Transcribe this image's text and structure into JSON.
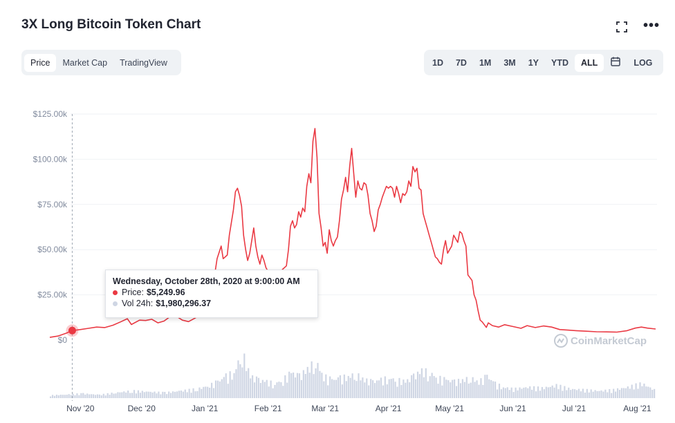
{
  "title": "3X Long Bitcoin Token Chart",
  "icons": {
    "fullscreen": "fullscreen-icon",
    "more": "more-icon",
    "calendar": "calendar-icon"
  },
  "tabs": [
    {
      "label": "Price",
      "active": true
    },
    {
      "label": "Market Cap",
      "active": false
    },
    {
      "label": "TradingView",
      "active": false
    }
  ],
  "ranges": [
    {
      "label": "1D",
      "active": false
    },
    {
      "label": "7D",
      "active": false
    },
    {
      "label": "1M",
      "active": false
    },
    {
      "label": "3M",
      "active": false
    },
    {
      "label": "1Y",
      "active": false
    },
    {
      "label": "YTD",
      "active": false
    },
    {
      "label": "ALL",
      "active": true
    }
  ],
  "log_label": "LOG",
  "tooltip": {
    "date": "Wednesday, October 28th, 2020 at 9:00:00 AM",
    "price_label": "Price:",
    "price_value": "$5,249.96",
    "vol_label": "Vol 24h:",
    "vol_value": "$1,980,296.37"
  },
  "watermark": "CoinMarketCap",
  "colors": {
    "price": "#ea3943",
    "volume": "#cfd6e4",
    "grid": "#eff2f5",
    "axis_text": "#808a9d"
  },
  "chart_data": {
    "type": "line",
    "x_range": [
      "2020-10-17",
      "2021-08-10"
    ],
    "y_ticks": [
      0,
      25000,
      50000,
      75000,
      100000,
      125000
    ],
    "y_tick_labels": [
      "$0",
      "$25.00k",
      "$50.00k",
      "$75.00k",
      "$100.00k",
      "$125.00k"
    ],
    "x_ticks": [
      "2020-11-01",
      "2020-12-01",
      "2021-01-01",
      "2021-02-01",
      "2021-03-01",
      "2021-04-01",
      "2021-05-01",
      "2021-06-01",
      "2021-07-01",
      "2021-08-01"
    ],
    "x_tick_labels": [
      "Nov '20",
      "Dec '20",
      "Jan '21",
      "Feb '21",
      "Mar '21",
      "Apr '21",
      "May '21",
      "Jun '21",
      "Jul '21",
      "Aug '21"
    ],
    "highlight": {
      "date": "2020-10-28",
      "price": 5249.96
    },
    "series": [
      {
        "values": [
          [
            "2020-10-17",
            1500
          ],
          [
            "2020-10-21",
            2200
          ],
          [
            "2020-10-25",
            3800
          ],
          [
            "2020-10-28",
            5250
          ],
          [
            "2020-11-01",
            5800
          ],
          [
            "2020-11-05",
            6500
          ],
          [
            "2020-11-09",
            7200
          ],
          [
            "2020-11-13",
            6900
          ],
          [
            "2020-11-17",
            8200
          ],
          [
            "2020-11-21",
            10200
          ],
          [
            "2020-11-24",
            11800
          ],
          [
            "2020-11-26",
            8600
          ],
          [
            "2020-11-30",
            11000
          ],
          [
            "2020-12-03",
            10800
          ],
          [
            "2020-12-06",
            11500
          ],
          [
            "2020-12-09",
            9500
          ],
          [
            "2020-12-12",
            10500
          ],
          [
            "2020-12-16",
            13800
          ],
          [
            "2020-12-18",
            13200
          ],
          [
            "2020-12-21",
            11000
          ],
          [
            "2020-12-24",
            10200
          ],
          [
            "2020-12-27",
            12000
          ],
          [
            "2020-12-30",
            14000
          ],
          [
            "2021-01-01",
            17000
          ],
          [
            "2021-01-03",
            25000
          ],
          [
            "2021-01-05",
            30000
          ],
          [
            "2021-01-07",
            45000
          ],
          [
            "2021-01-09",
            52000
          ],
          [
            "2021-01-10",
            45000
          ],
          [
            "2021-01-12",
            47000
          ],
          [
            "2021-01-13",
            58000
          ],
          [
            "2021-01-15",
            72000
          ],
          [
            "2021-01-16",
            82000
          ],
          [
            "2021-01-17",
            84000
          ],
          [
            "2021-01-18",
            80000
          ],
          [
            "2021-01-19",
            74000
          ],
          [
            "2021-01-20",
            58000
          ],
          [
            "2021-01-21",
            50000
          ],
          [
            "2021-01-22",
            44000
          ],
          [
            "2021-01-23",
            48000
          ],
          [
            "2021-01-24",
            55000
          ],
          [
            "2021-01-25",
            62000
          ],
          [
            "2021-01-26",
            52000
          ],
          [
            "2021-01-27",
            46000
          ],
          [
            "2021-01-28",
            42000
          ],
          [
            "2021-01-29",
            47000
          ],
          [
            "2021-01-30",
            44000
          ],
          [
            "2021-01-31",
            40000
          ],
          [
            "2021-02-01",
            38000
          ],
          [
            "2021-02-02",
            34000
          ],
          [
            "2021-02-03",
            28000
          ],
          [
            "2021-02-04",
            30000
          ],
          [
            "2021-02-05",
            27000
          ],
          [
            "2021-02-06",
            33000
          ],
          [
            "2021-02-07",
            36000
          ],
          [
            "2021-02-08",
            39000
          ],
          [
            "2021-02-10",
            41000
          ],
          [
            "2021-02-11",
            50000
          ],
          [
            "2021-02-12",
            63000
          ],
          [
            "2021-02-13",
            66000
          ],
          [
            "2021-02-14",
            62000
          ],
          [
            "2021-02-15",
            64000
          ],
          [
            "2021-02-16",
            71000
          ],
          [
            "2021-02-17",
            68000
          ],
          [
            "2021-02-18",
            73000
          ],
          [
            "2021-02-19",
            71000
          ],
          [
            "2021-02-20",
            85000
          ],
          [
            "2021-02-21",
            92000
          ],
          [
            "2021-02-22",
            87000
          ],
          [
            "2021-02-23",
            110000
          ],
          [
            "2021-02-24",
            117000
          ],
          [
            "2021-02-25",
            101000
          ],
          [
            "2021-02-26",
            70000
          ],
          [
            "2021-02-27",
            62000
          ],
          [
            "2021-02-28",
            52000
          ],
          [
            "2021-03-01",
            54000
          ],
          [
            "2021-03-02",
            48000
          ],
          [
            "2021-03-03",
            61000
          ],
          [
            "2021-03-04",
            55000
          ],
          [
            "2021-03-05",
            52000
          ],
          [
            "2021-03-06",
            55000
          ],
          [
            "2021-03-07",
            57000
          ],
          [
            "2021-03-08",
            66000
          ],
          [
            "2021-03-09",
            78000
          ],
          [
            "2021-03-10",
            83000
          ],
          [
            "2021-03-11",
            90000
          ],
          [
            "2021-03-12",
            82000
          ],
          [
            "2021-03-13",
            96000
          ],
          [
            "2021-03-14",
            106000
          ],
          [
            "2021-03-15",
            92000
          ],
          [
            "2021-03-16",
            79000
          ],
          [
            "2021-03-17",
            88000
          ],
          [
            "2021-03-18",
            84000
          ],
          [
            "2021-03-19",
            83000
          ],
          [
            "2021-03-20",
            87000
          ],
          [
            "2021-03-21",
            86000
          ],
          [
            "2021-03-22",
            80000
          ],
          [
            "2021-03-23",
            70000
          ],
          [
            "2021-03-24",
            66000
          ],
          [
            "2021-03-25",
            60000
          ],
          [
            "2021-03-26",
            63000
          ],
          [
            "2021-03-27",
            72000
          ],
          [
            "2021-03-28",
            75000
          ],
          [
            "2021-03-29",
            79000
          ],
          [
            "2021-03-30",
            82000
          ],
          [
            "2021-03-31",
            85000
          ],
          [
            "2021-04-01",
            84000
          ],
          [
            "2021-04-02",
            85000
          ],
          [
            "2021-04-03",
            84000
          ],
          [
            "2021-04-04",
            79000
          ],
          [
            "2021-04-05",
            85000
          ],
          [
            "2021-04-06",
            81000
          ],
          [
            "2021-04-07",
            76000
          ],
          [
            "2021-04-08",
            81000
          ],
          [
            "2021-04-09",
            80000
          ],
          [
            "2021-04-10",
            82000
          ],
          [
            "2021-04-11",
            88000
          ],
          [
            "2021-04-12",
            85000
          ],
          [
            "2021-04-13",
            96000
          ],
          [
            "2021-04-14",
            93000
          ],
          [
            "2021-04-15",
            95000
          ],
          [
            "2021-04-16",
            84000
          ],
          [
            "2021-04-17",
            83000
          ],
          [
            "2021-04-18",
            70000
          ],
          [
            "2021-04-19",
            66000
          ],
          [
            "2021-04-20",
            62000
          ],
          [
            "2021-04-21",
            58000
          ],
          [
            "2021-04-22",
            54000
          ],
          [
            "2021-04-23",
            50000
          ],
          [
            "2021-04-24",
            46000
          ],
          [
            "2021-04-25",
            45000
          ],
          [
            "2021-04-26",
            43000
          ],
          [
            "2021-04-27",
            42000
          ],
          [
            "2021-04-28",
            50000
          ],
          [
            "2021-04-29",
            55000
          ],
          [
            "2021-04-30",
            48000
          ],
          [
            "2021-05-01",
            50000
          ],
          [
            "2021-05-02",
            52000
          ],
          [
            "2021-05-03",
            58000
          ],
          [
            "2021-05-04",
            56000
          ],
          [
            "2021-05-05",
            54000
          ],
          [
            "2021-05-06",
            60000
          ],
          [
            "2021-05-07",
            59000
          ],
          [
            "2021-05-08",
            55000
          ],
          [
            "2021-05-09",
            52000
          ],
          [
            "2021-05-10",
            36000
          ],
          [
            "2021-05-12",
            33000
          ],
          [
            "2021-05-13",
            25000
          ],
          [
            "2021-05-14",
            22000
          ],
          [
            "2021-05-15",
            16000
          ],
          [
            "2021-05-16",
            11000
          ],
          [
            "2021-05-17",
            10000
          ],
          [
            "2021-05-19",
            7000
          ],
          [
            "2021-05-20",
            9500
          ],
          [
            "2021-05-22",
            8000
          ],
          [
            "2021-05-25",
            7200
          ],
          [
            "2021-05-28",
            8500
          ],
          [
            "2021-06-01",
            7500
          ],
          [
            "2021-06-05",
            6500
          ],
          [
            "2021-06-08",
            8000
          ],
          [
            "2021-06-12",
            6900
          ],
          [
            "2021-06-16",
            7800
          ],
          [
            "2021-06-20",
            7200
          ],
          [
            "2021-06-24",
            5800
          ],
          [
            "2021-06-28",
            5500
          ],
          [
            "2021-07-02",
            5200
          ],
          [
            "2021-07-07",
            4900
          ],
          [
            "2021-07-12",
            4600
          ],
          [
            "2021-07-17",
            4500
          ],
          [
            "2021-07-22",
            4400
          ],
          [
            "2021-07-27",
            5200
          ],
          [
            "2021-07-31",
            6600
          ],
          [
            "2021-08-03",
            7200
          ],
          [
            "2021-08-06",
            6600
          ],
          [
            "2021-08-10",
            6100
          ]
        ]
      },
      {
        "values": [
          [
            "2020-10-17",
            1.5
          ],
          [
            "2020-10-25",
            2.0
          ],
          [
            "2020-11-02",
            2.5
          ],
          [
            "2020-11-10",
            1.8
          ],
          [
            "2020-11-18",
            3.0
          ],
          [
            "2020-11-26",
            4.0
          ],
          [
            "2020-12-04",
            3.5
          ],
          [
            "2020-12-12",
            3.0
          ],
          [
            "2020-12-20",
            4.0
          ],
          [
            "2020-12-28",
            5.0
          ],
          [
            "2021-01-03",
            7.0
          ],
          [
            "2021-01-07",
            9.0
          ],
          [
            "2021-01-11",
            12.0
          ],
          [
            "2021-01-15",
            14.0
          ],
          [
            "2021-01-19",
            25.0
          ],
          [
            "2021-01-23",
            12.0
          ],
          [
            "2021-01-27",
            10.0
          ],
          [
            "2021-01-31",
            9.0
          ],
          [
            "2021-02-04",
            8.0
          ],
          [
            "2021-02-08",
            10.0
          ],
          [
            "2021-02-12",
            14.0
          ],
          [
            "2021-02-16",
            12.0
          ],
          [
            "2021-02-20",
            16.0
          ],
          [
            "2021-02-24",
            20.0
          ],
          [
            "2021-02-28",
            12.0
          ],
          [
            "2021-03-04",
            10.0
          ],
          [
            "2021-03-08",
            11.0
          ],
          [
            "2021-03-12",
            12.0
          ],
          [
            "2021-03-16",
            13.0
          ],
          [
            "2021-03-20",
            10.0
          ],
          [
            "2021-03-24",
            9.0
          ],
          [
            "2021-03-28",
            10.0
          ],
          [
            "2021-04-01",
            11.0
          ],
          [
            "2021-04-05",
            10.0
          ],
          [
            "2021-04-09",
            9.0
          ],
          [
            "2021-04-13",
            12.0
          ],
          [
            "2021-04-17",
            15.0
          ],
          [
            "2021-04-21",
            14.0
          ],
          [
            "2021-04-25",
            11.0
          ],
          [
            "2021-04-29",
            10.0
          ],
          [
            "2021-05-03",
            9.0
          ],
          [
            "2021-05-07",
            10.0
          ],
          [
            "2021-05-11",
            11.0
          ],
          [
            "2021-05-15",
            9.0
          ],
          [
            "2021-05-19",
            12.0
          ],
          [
            "2021-05-23",
            8.0
          ],
          [
            "2021-05-27",
            6.0
          ],
          [
            "2021-06-01",
            5.0
          ],
          [
            "2021-06-08",
            6.0
          ],
          [
            "2021-06-15",
            5.5
          ],
          [
            "2021-06-22",
            7.0
          ],
          [
            "2021-06-29",
            5.0
          ],
          [
            "2021-07-06",
            4.5
          ],
          [
            "2021-07-13",
            4.0
          ],
          [
            "2021-07-20",
            4.5
          ],
          [
            "2021-07-27",
            6.0
          ],
          [
            "2021-08-03",
            8.0
          ],
          [
            "2021-08-10",
            4.0
          ]
        ]
      }
    ]
  }
}
